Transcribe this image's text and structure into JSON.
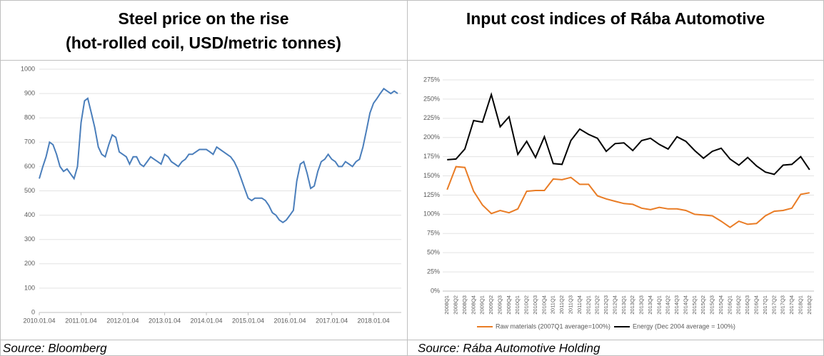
{
  "chart_data": [
    {
      "type": "line",
      "title": "Steel price on the rise",
      "subtitle": "(hot-rolled coil, USD/metric tonnes)",
      "source": "Source: Bloomberg",
      "color": "#4a7ebb",
      "xlim": [
        "2010.01.04",
        "2018.09.04"
      ],
      "xticks": [
        "2010.01.04",
        "2011.01.04",
        "2012.01.04",
        "2013.01.04",
        "2014.01.04",
        "2015.01.04",
        "2016.01.04",
        "2017.01.04",
        "2018.01.04"
      ],
      "ylim": [
        0,
        1000
      ],
      "yticks": [
        0,
        100,
        200,
        300,
        400,
        500,
        600,
        700,
        800,
        900,
        1000
      ],
      "grid": true,
      "x": [
        "2010.01.04",
        "2010.02.04",
        "2010.03.04",
        "2010.04.04",
        "2010.05.04",
        "2010.06.04",
        "2010.07.04",
        "2010.08.04",
        "2010.09.04",
        "2010.10.04",
        "2010.11.04",
        "2010.12.04",
        "2011.01.04",
        "2011.02.04",
        "2011.03.04",
        "2011.04.04",
        "2011.05.04",
        "2011.06.04",
        "2011.07.04",
        "2011.08.04",
        "2011.09.04",
        "2011.10.04",
        "2011.11.04",
        "2011.12.04",
        "2012.01.04",
        "2012.02.04",
        "2012.03.04",
        "2012.04.04",
        "2012.05.04",
        "2012.06.04",
        "2012.07.04",
        "2012.08.04",
        "2012.09.04",
        "2012.10.04",
        "2012.11.04",
        "2012.12.04",
        "2013.01.04",
        "2013.02.04",
        "2013.03.04",
        "2013.04.04",
        "2013.05.04",
        "2013.06.04",
        "2013.07.04",
        "2013.08.04",
        "2013.09.04",
        "2013.10.04",
        "2013.11.04",
        "2013.12.04",
        "2014.01.04",
        "2014.02.04",
        "2014.03.04",
        "2014.04.04",
        "2014.05.04",
        "2014.06.04",
        "2014.07.04",
        "2014.08.04",
        "2014.09.04",
        "2014.10.04",
        "2014.11.04",
        "2014.12.04",
        "2015.01.04",
        "2015.02.04",
        "2015.03.04",
        "2015.04.04",
        "2015.05.04",
        "2015.06.04",
        "2015.07.04",
        "2015.08.04",
        "2015.09.04",
        "2015.10.04",
        "2015.11.04",
        "2015.12.04",
        "2016.01.04",
        "2016.02.04",
        "2016.03.04",
        "2016.04.04",
        "2016.05.04",
        "2016.06.04",
        "2016.07.04",
        "2016.08.04",
        "2016.09.04",
        "2016.10.04",
        "2016.11.04",
        "2016.12.04",
        "2017.01.04",
        "2017.02.04",
        "2017.03.04",
        "2017.04.04",
        "2017.05.04",
        "2017.06.04",
        "2017.07.04",
        "2017.08.04",
        "2017.09.04",
        "2017.10.04",
        "2017.11.04",
        "2017.12.04",
        "2018.01.04",
        "2018.02.04",
        "2018.03.04",
        "2018.04.04",
        "2018.05.04",
        "2018.06.04",
        "2018.07.04",
        "2018.08.04"
      ],
      "values": [
        550,
        600,
        640,
        700,
        690,
        650,
        600,
        580,
        590,
        570,
        550,
        600,
        780,
        870,
        880,
        820,
        760,
        680,
        650,
        640,
        690,
        730,
        720,
        660,
        650,
        640,
        610,
        640,
        640,
        610,
        600,
        620,
        640,
        630,
        620,
        610,
        650,
        640,
        620,
        610,
        600,
        620,
        630,
        650,
        650,
        660,
        670,
        670,
        670,
        660,
        650,
        680,
        670,
        660,
        650,
        640,
        620,
        590,
        550,
        510,
        470,
        460,
        470,
        470,
        470,
        460,
        440,
        410,
        400,
        380,
        370,
        380,
        400,
        420,
        540,
        610,
        620,
        570,
        510,
        520,
        580,
        620,
        630,
        650,
        630,
        620,
        600,
        600,
        620,
        610,
        600,
        620,
        630,
        680,
        750,
        820,
        860,
        880,
        900,
        920,
        910,
        900,
        910,
        900
      ]
    },
    {
      "type": "line",
      "title": "Input cost indices of Rába Automotive",
      "source": "Source: Rába Automotive Holding",
      "categories": [
        "2008Q1",
        "2008Q2",
        "2008Q3",
        "2008Q4",
        "2009Q1",
        "2009Q2",
        "2009Q3",
        "2009Q4",
        "2010Q1",
        "2010Q2",
        "2010Q3",
        "2010Q4",
        "2011Q1",
        "2011Q2",
        "2011Q3",
        "2011Q4",
        "2012Q1",
        "2012Q2",
        "2012Q3",
        "2012Q4",
        "2013Q1",
        "2013Q2",
        "2013Q3",
        "2013Q4",
        "2014Q1",
        "2014Q2",
        "2014Q3",
        "2014Q4",
        "2015Q1",
        "2015Q2",
        "2015Q3",
        "2015Q4",
        "2016Q1",
        "2016Q2",
        "2016Q3",
        "2016Q4",
        "2017Q1",
        "2017Q2",
        "2017Q3",
        "2017Q4",
        "2018Q1",
        "2018Q2"
      ],
      "ylim": [
        0,
        275
      ],
      "yticks": [
        {
          "value": 0,
          "label": "0%"
        },
        {
          "value": 25,
          "label": "25%"
        },
        {
          "value": 50,
          "label": "50%"
        },
        {
          "value": 75,
          "label": "75%"
        },
        {
          "value": 100,
          "label": "100%"
        },
        {
          "value": 125,
          "label": "125%"
        },
        {
          "value": 150,
          "label": "150%"
        },
        {
          "value": 175,
          "label": "175%"
        },
        {
          "value": 200,
          "label": "200%"
        },
        {
          "value": 225,
          "label": "225%"
        },
        {
          "value": 250,
          "label": "250%"
        },
        {
          "value": 275,
          "label": "275%"
        }
      ],
      "grid": true,
      "legend": "bottom",
      "series": [
        {
          "name": "Raw materials (2007Q1 average=100%)",
          "color": "#e97c25",
          "values": [
            132,
            162,
            161,
            130,
            112,
            101,
            105,
            102,
            107,
            130,
            131,
            131,
            146,
            145,
            148,
            139,
            139,
            124,
            120,
            117,
            114,
            113,
            108,
            106,
            109,
            107,
            107,
            105,
            100,
            99,
            98,
            91,
            83,
            91,
            87,
            88,
            98,
            104,
            105,
            108,
            126,
            128
          ]
        },
        {
          "name": "Energy (Dec 2004 average = 100%)",
          "color": "#000000",
          "values": [
            171,
            172,
            185,
            222,
            220,
            256,
            214,
            227,
            178,
            195,
            174,
            201,
            166,
            165,
            196,
            211,
            204,
            199,
            182,
            192,
            193,
            183,
            196,
            199,
            191,
            185,
            201,
            195,
            183,
            173,
            182,
            186,
            172,
            164,
            174,
            163,
            155,
            152,
            164,
            165,
            175,
            158
          ]
        }
      ]
    }
  ]
}
